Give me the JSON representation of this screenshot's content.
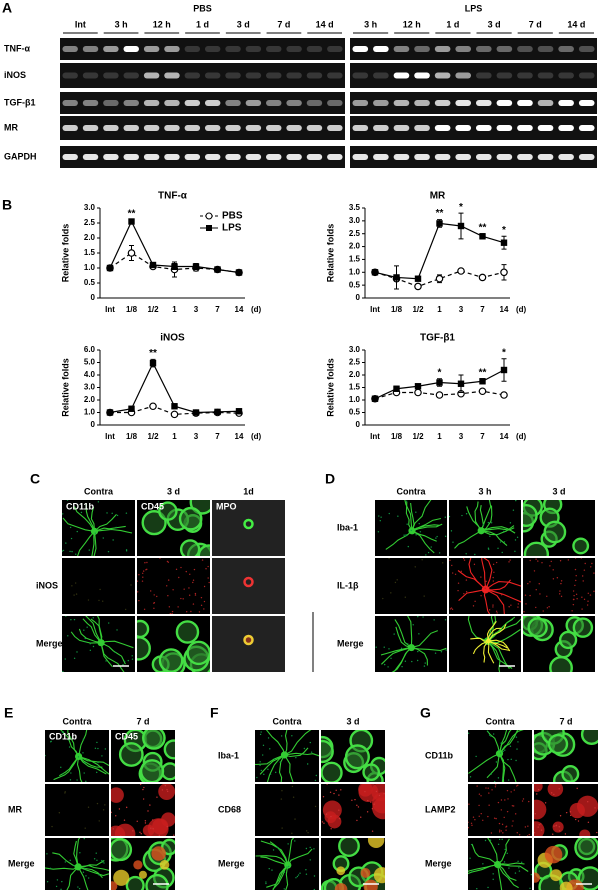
{
  "panel_a": {
    "label": "A",
    "groups": [
      {
        "name": "PBS",
        "lanes": [
          "Int",
          "3 h",
          "12 h",
          "1 d",
          "3 d",
          "7 d",
          "14 d"
        ]
      },
      {
        "name": "LPS",
        "lanes": [
          "3 h",
          "12 h",
          "1 d",
          "3 d",
          "7 d",
          "14 d"
        ]
      }
    ],
    "rows": [
      "TNF-α",
      "iNOS",
      "TGF-β1",
      "MR",
      "GAPDH"
    ]
  },
  "panel_b": {
    "label": "B"
  },
  "chart_data": [
    {
      "type": "line",
      "title": "TNF-α",
      "ylabel": "Relative folds",
      "xlabel": "(d)",
      "categories": [
        "Int",
        "1/8",
        "1/2",
        "1",
        "3",
        "7",
        "14"
      ],
      "ylim": [
        0,
        3
      ],
      "yticks": [
        0,
        0.5,
        {
          "value": 1,
          "label": "1.0"
        },
        1.5,
        {
          "value": 2,
          "label": "2.0"
        },
        2.5,
        {
          "value": 3,
          "label": "3.0"
        }
      ],
      "series": [
        {
          "name": "PBS",
          "color": "#000000",
          "style": "dashed",
          "marker": "open-circle",
          "values": [
            1.0,
            1.5,
            1.05,
            0.95,
            1.0,
            0.95,
            0.85
          ],
          "errors": [
            0.05,
            0.25,
            0.05,
            0.25,
            0.1,
            0.05,
            0.05
          ]
        },
        {
          "name": "LPS",
          "color": "#000000",
          "style": "solid",
          "marker": "filled-square",
          "values": [
            1.0,
            2.55,
            1.1,
            1.05,
            1.05,
            0.95,
            0.85
          ],
          "errors": [
            0.05,
            0.05,
            0.05,
            0.1,
            0.1,
            0.05,
            0.05
          ]
        }
      ],
      "annotations": [
        {
          "text": "**",
          "category": "1/8"
        }
      ],
      "legend": "upper right"
    },
    {
      "type": "line",
      "title": "MR",
      "ylabel": "Relative folds",
      "xlabel": "(d)",
      "categories": [
        "Int",
        "1/8",
        "1/2",
        "1",
        "3",
        "7",
        "14"
      ],
      "ylim": [
        0,
        3.5
      ],
      "yticks": [
        0,
        0.5,
        {
          "value": 1,
          "label": "1.0"
        },
        1.5,
        {
          "value": 2,
          "label": "2.0"
        },
        2.5,
        {
          "value": 3,
          "label": "3.0"
        },
        3.5
      ],
      "series": [
        {
          "color": "#000000",
          "style": "dashed",
          "marker": "open-circle",
          "values": [
            1.0,
            0.75,
            0.45,
            0.75,
            1.05,
            0.8,
            1.0
          ],
          "errors": [
            0.05,
            0.1,
            0.05,
            0.15,
            0.05,
            0.05,
            0.3
          ]
        },
        {
          "color": "#000000",
          "style": "solid",
          "marker": "filled-square",
          "values": [
            1.0,
            0.8,
            0.75,
            2.9,
            2.8,
            2.4,
            2.15
          ],
          "errors": [
            0.05,
            0.45,
            0.05,
            0.15,
            0.5,
            0.1,
            0.25
          ]
        }
      ],
      "annotations": [
        {
          "text": "**",
          "category": "1"
        },
        {
          "text": "*",
          "category": "3"
        },
        {
          "text": "**",
          "category": "7"
        },
        {
          "text": "*",
          "category": "14"
        }
      ]
    },
    {
      "type": "line",
      "title": "iNOS",
      "ylabel": "Relative folds",
      "xlabel": "(d)",
      "categories": [
        "Int",
        "1/8",
        "1/2",
        "1",
        "3",
        "7",
        "14"
      ],
      "ylim": [
        0,
        6
      ],
      "yticks": [
        0,
        {
          "value": 1,
          "label": "1.0"
        },
        {
          "value": 2,
          "label": "2.0"
        },
        {
          "value": 3,
          "label": "3.0"
        },
        {
          "value": 4,
          "label": "4.0"
        },
        {
          "value": 5,
          "label": "5.0"
        },
        {
          "value": 6,
          "label": "6.0"
        }
      ],
      "series": [
        {
          "color": "#000000",
          "style": "dashed",
          "marker": "open-circle",
          "values": [
            1.0,
            1.0,
            1.5,
            0.85,
            0.95,
            1.0,
            0.95
          ],
          "errors": [
            0.05,
            0.1,
            0.1,
            0.1,
            0.1,
            0.1,
            0.1
          ]
        },
        {
          "color": "#000000",
          "style": "solid",
          "marker": "filled-square",
          "values": [
            1.0,
            1.3,
            4.95,
            1.5,
            1.0,
            1.05,
            1.1
          ],
          "errors": [
            0.1,
            0.1,
            0.3,
            0.1,
            0.1,
            0.1,
            0.15
          ]
        }
      ],
      "annotations": [
        {
          "text": "**",
          "category": "1/2"
        }
      ]
    },
    {
      "type": "line",
      "title": "TGF-β1",
      "ylabel": "Relative folds",
      "xlabel": "(d)",
      "categories": [
        "Int",
        "1/8",
        "1/2",
        "1",
        "3",
        "7",
        "14"
      ],
      "ylim": [
        0,
        3
      ],
      "yticks": [
        0,
        0.5,
        {
          "value": 1,
          "label": "1.0"
        },
        1.5,
        {
          "value": 2,
          "label": "2.0"
        },
        2.5,
        {
          "value": 3,
          "label": "3.0"
        }
      ],
      "series": [
        {
          "color": "#000000",
          "style": "dashed",
          "marker": "open-circle",
          "values": [
            1.05,
            1.3,
            1.3,
            1.2,
            1.25,
            1.35,
            1.2
          ],
          "errors": [
            0.05,
            0.05,
            0.05,
            0.08,
            0.05,
            0.05,
            0.05
          ]
        },
        {
          "color": "#000000",
          "style": "solid",
          "marker": "filled-square",
          "values": [
            1.05,
            1.45,
            1.55,
            1.7,
            1.65,
            1.75,
            2.2
          ],
          "errors": [
            0.05,
            0.1,
            0.05,
            0.15,
            0.35,
            0.1,
            0.45
          ]
        }
      ],
      "annotations": [
        {
          "text": "*",
          "category": "1"
        },
        {
          "text": "**",
          "category": "7"
        },
        {
          "text": "*",
          "category": "14"
        }
      ]
    }
  ],
  "micrographs": [
    {
      "label": "C",
      "columns": [
        "Contra",
        "3 d",
        "1d"
      ],
      "cell_labels": [
        "CD11b",
        "CD45",
        "MPO"
      ],
      "rows": [
        null,
        "iNOS",
        "Merge"
      ]
    },
    {
      "label": "D",
      "columns": [
        "Contra",
        "3 h",
        "3 d"
      ],
      "rows": [
        "Iba-1",
        "IL-1β",
        "Merge"
      ]
    },
    {
      "label": "E",
      "columns": [
        "Contra",
        "7 d"
      ],
      "cell_labels": [
        "CD11b",
        "CD45"
      ],
      "rows": [
        null,
        "MR",
        "Merge"
      ]
    },
    {
      "label": "F",
      "columns": [
        "Contra",
        "3 d"
      ],
      "rows": [
        "Iba-1",
        "CD68",
        "Merge"
      ]
    },
    {
      "label": "G",
      "columns": [
        "Contra",
        "7 d"
      ],
      "rows": [
        "CD11b",
        "LAMP2",
        "Merge"
      ]
    }
  ]
}
